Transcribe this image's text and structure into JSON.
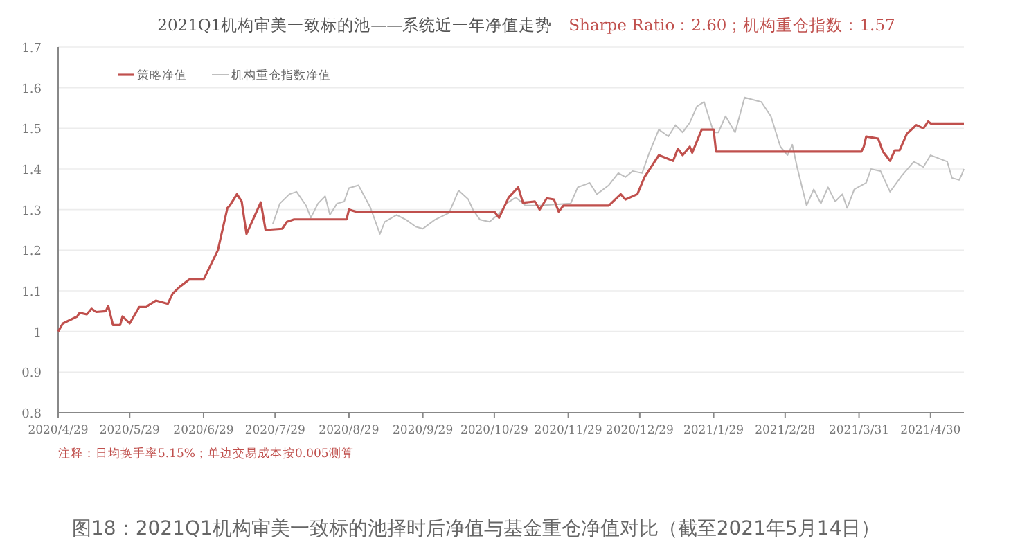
{
  "chart_data": {
    "type": "line",
    "title": "2021Q1机构审美一致标的池——系统近一年净值走势",
    "subtitle": "Sharpe Ratio：2.60；机构重仓指数：1.57",
    "annotations": [
      "注释：日均换手率5.15%；单边交易成本按0.005测算",
      "图18：2021Q1机构审美一致标的池择时后净值与基金重仓净值对比（截至2021年5月14日）"
    ],
    "xlim": [
      "2020-04-29",
      "2021-05-14"
    ],
    "xticks": [
      {
        "value": "2020-04-29",
        "label": "2020/4/29"
      },
      {
        "value": "2020-05-29",
        "label": "2020/5/29"
      },
      {
        "value": "2020-06-29",
        "label": "2020/6/29"
      },
      {
        "value": "2020-07-29",
        "label": "2020/7/29"
      },
      {
        "value": "2020-08-29",
        "label": "2020/8/29"
      },
      {
        "value": "2020-09-29",
        "label": "2020/9/29"
      },
      {
        "value": "2020-10-29",
        "label": "2020/10/29"
      },
      {
        "value": "2020-11-29",
        "label": "2020/11/29"
      },
      {
        "value": "2020-12-29",
        "label": "2020/12/29"
      },
      {
        "value": "2021-01-29",
        "label": "2021/1/29"
      },
      {
        "value": "2021-02-28",
        "label": "2021/2/28"
      },
      {
        "value": "2021-03-31",
        "label": "2021/3/31"
      },
      {
        "value": "2021-04-30",
        "label": "2021/4/30"
      }
    ],
    "ylim": [
      0.8,
      1.7
    ],
    "yticks": [
      0.8,
      0.9,
      1,
      1.1,
      1.2,
      1.3,
      1.4,
      1.5,
      1.6,
      1.7
    ],
    "grid": "y",
    "legend": "top left",
    "series": [
      {
        "name": "策略净值",
        "color": "#c0504d",
        "x": [
          "2020-04-29",
          "2020-05-01",
          "2020-05-07",
          "2020-05-08",
          "2020-05-11",
          "2020-05-13",
          "2020-05-15",
          "2020-05-19",
          "2020-05-20",
          "2020-05-22",
          "2020-05-25",
          "2020-05-26",
          "2020-05-29",
          "2020-06-02",
          "2020-06-05",
          "2020-06-06",
          "2020-06-09",
          "2020-06-14",
          "2020-06-16",
          "2020-06-19",
          "2020-06-23",
          "2020-06-29",
          "2020-07-05",
          "2020-07-09",
          "2020-07-10",
          "2020-07-13",
          "2020-07-15",
          "2020-07-17",
          "2020-07-23",
          "2020-07-25",
          "2020-08-01",
          "2020-08-03",
          "2020-08-06",
          "2020-08-28",
          "2020-08-29",
          "2020-09-01",
          "2020-10-29",
          "2020-10-31",
          "2020-11-04",
          "2020-11-08",
          "2020-11-10",
          "2020-11-15",
          "2020-11-17",
          "2020-11-20",
          "2020-11-23",
          "2020-11-25",
          "2020-11-27",
          "2020-12-16",
          "2020-12-21",
          "2020-12-23",
          "2020-12-28",
          "2020-12-31",
          "2021-01-06",
          "2021-01-12",
          "2021-01-14",
          "2021-01-16",
          "2021-01-19",
          "2021-01-20",
          "2021-01-24",
          "2021-01-29",
          "2021-01-30",
          "2021-04-01",
          "2021-04-02",
          "2021-04-03",
          "2021-04-08",
          "2021-04-10",
          "2021-04-13",
          "2021-04-15",
          "2021-04-17",
          "2021-04-20",
          "2021-04-24",
          "2021-04-27",
          "2021-04-29",
          "2021-04-30",
          "2021-05-14"
        ],
        "values": [
          1.0,
          1.02,
          1.037,
          1.046,
          1.042,
          1.056,
          1.048,
          1.05,
          1.063,
          1.016,
          1.016,
          1.037,
          1.02,
          1.06,
          1.06,
          1.065,
          1.076,
          1.068,
          1.093,
          1.11,
          1.128,
          1.128,
          1.2,
          1.304,
          1.31,
          1.338,
          1.32,
          1.24,
          1.318,
          1.25,
          1.253,
          1.27,
          1.276,
          1.276,
          1.3,
          1.295,
          1.295,
          1.28,
          1.33,
          1.355,
          1.317,
          1.32,
          1.3,
          1.328,
          1.325,
          1.295,
          1.31,
          1.31,
          1.338,
          1.325,
          1.338,
          1.38,
          1.434,
          1.42,
          1.45,
          1.434,
          1.455,
          1.44,
          1.497,
          1.497,
          1.443,
          1.443,
          1.455,
          1.48,
          1.475,
          1.443,
          1.42,
          1.446,
          1.446,
          1.486,
          1.508,
          1.5,
          1.517,
          1.512,
          1.512
        ]
      },
      {
        "name": "机构重仓指数净值",
        "color": "#bfbfbf",
        "x": [
          "2020-07-28",
          "2020-07-31",
          "2020-08-04",
          "2020-08-07",
          "2020-08-11",
          "2020-08-13",
          "2020-08-16",
          "2020-08-19",
          "2020-08-21",
          "2020-08-24",
          "2020-08-27",
          "2020-08-29",
          "2020-09-02",
          "2020-09-07",
          "2020-09-11",
          "2020-09-13",
          "2020-09-18",
          "2020-09-22",
          "2020-09-26",
          "2020-09-29",
          "2020-10-04",
          "2020-10-10",
          "2020-10-14",
          "2020-10-18",
          "2020-10-20",
          "2020-10-23",
          "2020-10-27",
          "2020-10-31",
          "2020-11-03",
          "2020-11-07",
          "2020-11-11",
          "2020-11-17",
          "2020-11-30",
          "2020-12-03",
          "2020-12-08",
          "2020-12-11",
          "2020-12-16",
          "2020-12-20",
          "2020-12-23",
          "2020-12-26",
          "2020-12-30",
          "2021-01-02",
          "2021-01-06",
          "2021-01-10",
          "2021-01-13",
          "2021-01-16",
          "2021-01-19",
          "2021-01-22",
          "2021-01-25",
          "2021-01-29",
          "2021-01-31",
          "2021-02-03",
          "2021-02-07",
          "2021-02-11",
          "2021-02-18",
          "2021-02-22",
          "2021-02-26",
          "2021-03-01",
          "2021-03-03",
          "2021-03-05",
          "2021-03-09",
          "2021-03-12",
          "2021-03-15",
          "2021-03-18",
          "2021-03-21",
          "2021-03-24",
          "2021-03-26",
          "2021-03-29",
          "2021-04-03",
          "2021-04-05",
          "2021-04-09",
          "2021-04-13",
          "2021-04-18",
          "2021-04-23",
          "2021-04-27",
          "2021-04-30",
          "2021-05-07",
          "2021-05-09",
          "2021-05-12",
          "2021-05-13",
          "2021-05-14"
        ],
        "values": [
          1.264,
          1.315,
          1.338,
          1.344,
          1.31,
          1.28,
          1.315,
          1.333,
          1.287,
          1.315,
          1.32,
          1.353,
          1.36,
          1.305,
          1.24,
          1.27,
          1.287,
          1.275,
          1.258,
          1.253,
          1.275,
          1.292,
          1.347,
          1.326,
          1.3,
          1.275,
          1.27,
          1.29,
          1.315,
          1.33,
          1.31,
          1.31,
          1.315,
          1.355,
          1.366,
          1.338,
          1.36,
          1.39,
          1.38,
          1.395,
          1.39,
          1.44,
          1.497,
          1.48,
          1.508,
          1.49,
          1.514,
          1.554,
          1.565,
          1.49,
          1.49,
          1.53,
          1.49,
          1.576,
          1.565,
          1.53,
          1.455,
          1.434,
          1.46,
          1.405,
          1.31,
          1.35,
          1.315,
          1.355,
          1.32,
          1.338,
          1.304,
          1.35,
          1.366,
          1.4,
          1.395,
          1.344,
          1.384,
          1.418,
          1.405,
          1.434,
          1.418,
          1.378,
          1.373,
          1.385,
          1.4
        ]
      }
    ]
  }
}
